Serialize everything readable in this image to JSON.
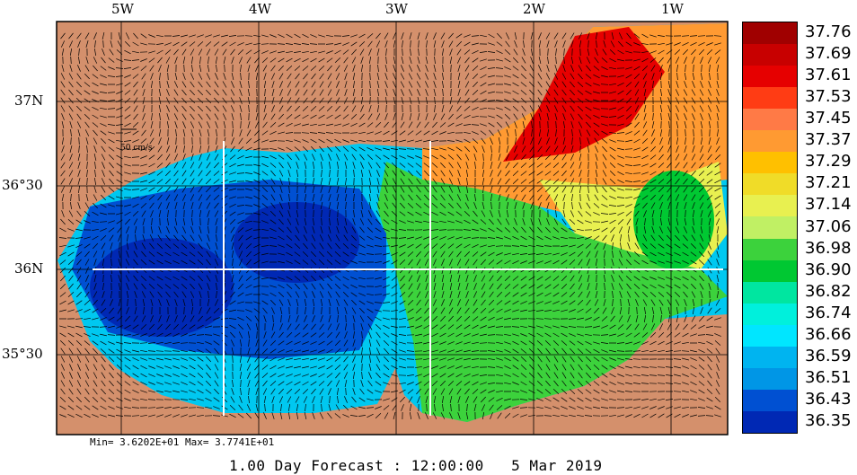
{
  "map": {
    "lon_labels": [
      "5W",
      "4W",
      "3W",
      "2W",
      "1W"
    ],
    "lat_labels": [
      "37N",
      "36°30",
      "36N",
      "35°30"
    ],
    "scale_label": "50 cm/s",
    "minmax": "Min= 3.6202E+01  Max= 3.7741E+01",
    "footer": "1.00 Day Forecast : 12:00:00   5 Mar 2019",
    "colors": {
      "land": "#d4906c",
      "water_edge": "#add8e6",
      "grid": "#000000",
      "section_line": "#ffffff"
    }
  },
  "colorbar": {
    "labels": [
      "37.76",
      "37.69",
      "37.61",
      "37.53",
      "37.45",
      "37.37",
      "37.29",
      "37.21",
      "37.14",
      "37.06",
      "36.98",
      "36.90",
      "36.82",
      "36.74",
      "36.66",
      "36.59",
      "36.51",
      "36.43",
      "36.35"
    ],
    "colors": [
      "#a00000",
      "#c80000",
      "#e60000",
      "#ff3c14",
      "#ff7a46",
      "#ff9a32",
      "#ffc000",
      "#f0dc28",
      "#e8f050",
      "#c0f064",
      "#3cd23c",
      "#00c832",
      "#00e6a0",
      "#00f0dc",
      "#00e6ff",
      "#00b4f0",
      "#0096e6",
      "#0050d2",
      "#0028b4"
    ]
  }
}
